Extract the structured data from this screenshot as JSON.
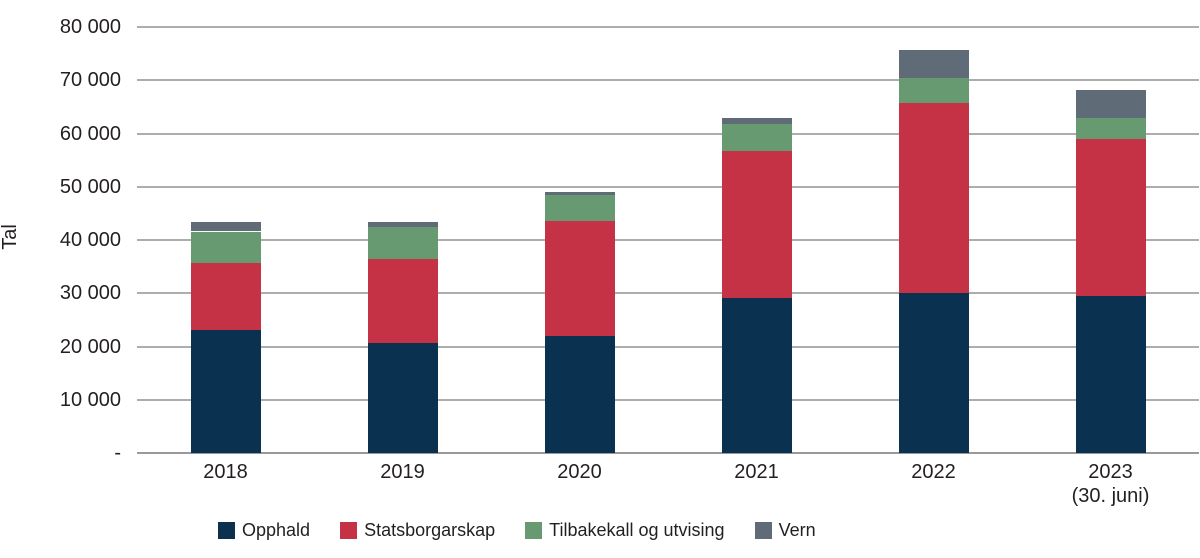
{
  "chart_data": {
    "type": "bar",
    "stacked": true,
    "title": "",
    "ylabel": "Tal",
    "xlabel": "",
    "ylim": [
      0,
      80000
    ],
    "ytick_step": 10000,
    "ytick_labels_top_to_bottom": [
      "80 000",
      "70 000",
      "60 000",
      "50 000",
      "40 000",
      "30 000",
      "20 000",
      "10 000",
      "-"
    ],
    "categories": [
      {
        "label": "2018",
        "sublabel": ""
      },
      {
        "label": "2019",
        "sublabel": ""
      },
      {
        "label": "2020",
        "sublabel": ""
      },
      {
        "label": "2021",
        "sublabel": ""
      },
      {
        "label": "2022",
        "sublabel": ""
      },
      {
        "label": "2023",
        "sublabel": "(30. juni)"
      }
    ],
    "series": [
      {
        "name": "Opphald",
        "color": "#0a3150",
        "values": [
          23100,
          20600,
          22000,
          29200,
          30100,
          29500
        ]
      },
      {
        "name": "Statsborgarskap",
        "color": "#c63245",
        "values": [
          12500,
          15800,
          21600,
          27500,
          35700,
          29400
        ]
      },
      {
        "name": "Tilbakekall og utvising",
        "color": "#689a71",
        "values": [
          6000,
          6000,
          4900,
          5100,
          4600,
          4100
        ]
      },
      {
        "name": "Vern",
        "color": "#5f6b76",
        "values": [
          1700,
          900,
          600,
          1100,
          5300,
          5100
        ]
      }
    ],
    "totals": [
      43300,
      43300,
      49100,
      62900,
      75700,
      68100
    ],
    "legend_position": "bottom",
    "grid": "horizontal",
    "gridline_color": "#adadad",
    "axis_line_color": "#999999",
    "text_color": "#231f20",
    "background": "#ffffff"
  }
}
